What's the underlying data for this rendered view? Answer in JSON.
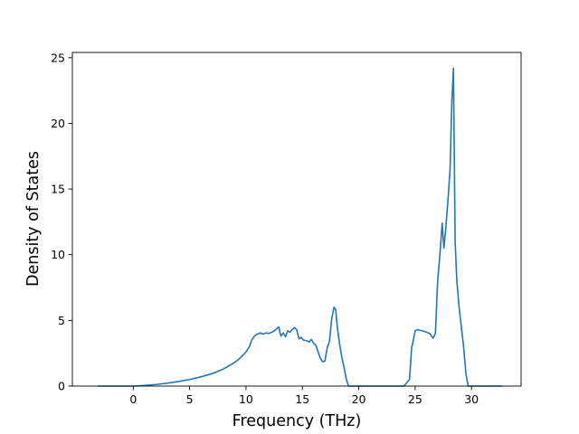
{
  "chart_data": {
    "type": "line",
    "title": "",
    "xlabel": "Frequency (THz)",
    "ylabel": "Density of States",
    "xlim": [
      -5.4,
      34.4
    ],
    "ylim": [
      0,
      25.4
    ],
    "xticks": [
      0,
      5,
      10,
      15,
      20,
      25,
      30
    ],
    "yticks": [
      0,
      5,
      10,
      15,
      20,
      25
    ],
    "grid": false,
    "legend": "none",
    "colors": {
      "line": "#1f77b4",
      "axes": "#000000",
      "background": "#ffffff"
    },
    "series": [
      {
        "x": [
          -3.1,
          -2.0,
          -1.0,
          0.0,
          1.0,
          2.0,
          3.0,
          4.0,
          5.0,
          6.0,
          7.0,
          8.0,
          9.0,
          9.5,
          10.0,
          10.3,
          10.5,
          10.8,
          11.0,
          11.3,
          11.5,
          11.8,
          12.0,
          12.3,
          12.5,
          12.7,
          12.9,
          13.1,
          13.3,
          13.5,
          13.7,
          13.9,
          14.1,
          14.3,
          14.5,
          14.7,
          14.9,
          15.1,
          15.4,
          15.6,
          15.8,
          16.0,
          16.2,
          16.4,
          16.6,
          16.8,
          17.0,
          17.2,
          17.4,
          17.6,
          17.8,
          17.95,
          18.1,
          18.3,
          18.5,
          18.7,
          18.9,
          19.1,
          19.3,
          20.0,
          21.0,
          22.0,
          23.0,
          24.0,
          24.5,
          24.7,
          24.8,
          25.0,
          25.2,
          25.4,
          25.7,
          26.0,
          26.3,
          26.6,
          26.8,
          27.0,
          27.2,
          27.4,
          27.55,
          27.7,
          27.9,
          28.1,
          28.25,
          28.4,
          28.55,
          28.7,
          28.9,
          29.1,
          29.3,
          29.5,
          29.7,
          29.9,
          30.5,
          31.5,
          32.7
        ],
        "y": [
          0,
          0,
          0,
          0,
          0.05,
          0.12,
          0.22,
          0.35,
          0.5,
          0.7,
          0.95,
          1.3,
          1.8,
          2.15,
          2.6,
          3.0,
          3.5,
          3.85,
          3.95,
          4.05,
          3.95,
          4.05,
          4.0,
          4.1,
          4.2,
          4.35,
          4.5,
          3.8,
          4.05,
          3.75,
          4.2,
          4.1,
          4.3,
          4.45,
          4.3,
          3.6,
          3.7,
          3.5,
          3.45,
          3.35,
          3.55,
          3.25,
          3.1,
          2.6,
          2.1,
          1.85,
          1.9,
          2.9,
          3.4,
          5.1,
          6.0,
          5.85,
          4.5,
          3.2,
          2.2,
          1.4,
          0.5,
          0,
          0,
          0,
          0,
          0,
          0,
          0,
          0.5,
          3.0,
          3.3,
          4.2,
          4.3,
          4.25,
          4.2,
          4.1,
          4.0,
          3.65,
          4.0,
          8.0,
          10.0,
          12.4,
          10.5,
          11.8,
          14.0,
          16.5,
          21.5,
          24.2,
          11.0,
          8.0,
          6.0,
          4.5,
          3.0,
          1.0,
          0,
          0,
          0,
          0,
          0
        ]
      }
    ]
  }
}
